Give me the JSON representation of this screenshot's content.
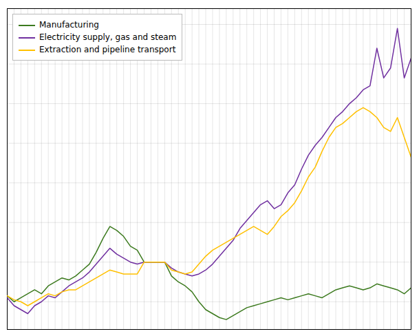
{
  "chart_data": {
    "type": "line",
    "x": [
      2000,
      2000.25,
      2000.5,
      2000.75,
      2001,
      2001.25,
      2001.5,
      2001.75,
      2002,
      2002.25,
      2002.5,
      2002.75,
      2003,
      2003.25,
      2003.5,
      2003.75,
      2004,
      2004.25,
      2004.5,
      2004.75,
      2005,
      2005.25,
      2005.5,
      2005.75,
      2006,
      2006.25,
      2006.5,
      2006.75,
      2007,
      2007.25,
      2007.5,
      2007.75,
      2008,
      2008.25,
      2008.5,
      2008.75,
      2009,
      2009.25,
      2009.5,
      2009.75,
      2010,
      2010.25,
      2010.5,
      2010.75,
      2011,
      2011.25,
      2011.5,
      2011.75,
      2012,
      2012.25,
      2012.5,
      2012.75,
      2013,
      2013.25,
      2013.5,
      2013.75,
      2014,
      2014.25,
      2014.5,
      2014.75
    ],
    "series": [
      {
        "name": "Manufacturing",
        "color": "#3c7a1e",
        "values": [
          83,
          80,
          82,
          84,
          86,
          84,
          88,
          90,
          92,
          91,
          93,
          96,
          99,
          105,
          112,
          118,
          116,
          113,
          108,
          106,
          100,
          100,
          100,
          100,
          93,
          90,
          88,
          85,
          80,
          76,
          74,
          72,
          71,
          73,
          75,
          77,
          78,
          79,
          80,
          81,
          82,
          81,
          82,
          83,
          84,
          83,
          82,
          84,
          86,
          87,
          88,
          87,
          86,
          87,
          89,
          88,
          87,
          86,
          84,
          87
        ]
      },
      {
        "name": "Electricity supply, gas and steam",
        "color": "#7030a0",
        "values": [
          82,
          78,
          76,
          74,
          78,
          80,
          83,
          82,
          85,
          88,
          90,
          92,
          95,
          99,
          103,
          107,
          104,
          102,
          100,
          99,
          100,
          100,
          100,
          100,
          97,
          95,
          94,
          93,
          94,
          96,
          99,
          103,
          107,
          111,
          117,
          121,
          125,
          129,
          131,
          127,
          129,
          135,
          139,
          147,
          154,
          159,
          163,
          168,
          173,
          176,
          180,
          183,
          187,
          189,
          208,
          193,
          198,
          218,
          193,
          203
        ]
      },
      {
        "name": "Extraction and pipeline transport",
        "color": "#ffc000",
        "values": [
          83,
          81,
          80,
          78,
          80,
          82,
          84,
          83,
          85,
          86,
          86,
          88,
          90,
          92,
          94,
          96,
          95,
          94,
          94,
          94,
          100,
          100,
          100,
          100,
          96,
          95,
          94,
          95,
          99,
          103,
          106,
          108,
          110,
          112,
          114,
          116,
          118,
          116,
          114,
          118,
          123,
          126,
          130,
          136,
          143,
          148,
          156,
          163,
          168,
          170,
          173,
          176,
          178,
          176,
          173,
          168,
          166,
          173,
          163,
          153
        ]
      }
    ],
    "xlim": [
      2000,
      2014.75
    ],
    "ylim": [
      66,
      228
    ],
    "xticks": [
      2000,
      2000.25,
      2000.5,
      2000.75,
      2001,
      2001.25,
      2001.5,
      2001.75,
      2002,
      2002.25,
      2002.5,
      2002.75,
      2003,
      2003.25,
      2003.5,
      2003.75,
      2004,
      2004.25,
      2004.5,
      2004.75,
      2005,
      2005.25,
      2005.5,
      2005.75,
      2006,
      2006.25,
      2006.5,
      2006.75,
      2007,
      2007.25,
      2007.5,
      2007.75,
      2008,
      2008.25,
      2008.5,
      2008.75,
      2009,
      2009.25,
      2009.5,
      2009.75,
      2010,
      2010.25,
      2010.5,
      2010.75,
      2011,
      2011.25,
      2011.5,
      2011.75,
      2012,
      2012.25,
      2012.5,
      2012.75,
      2013,
      2013.25,
      2013.5,
      2013.75,
      2014,
      2014.25,
      2014.5,
      2014.75
    ],
    "yticks": [
      80,
      100,
      120,
      140,
      160,
      180,
      200,
      220
    ],
    "grid": true,
    "legend": "upper left",
    "tick_labels": false
  }
}
